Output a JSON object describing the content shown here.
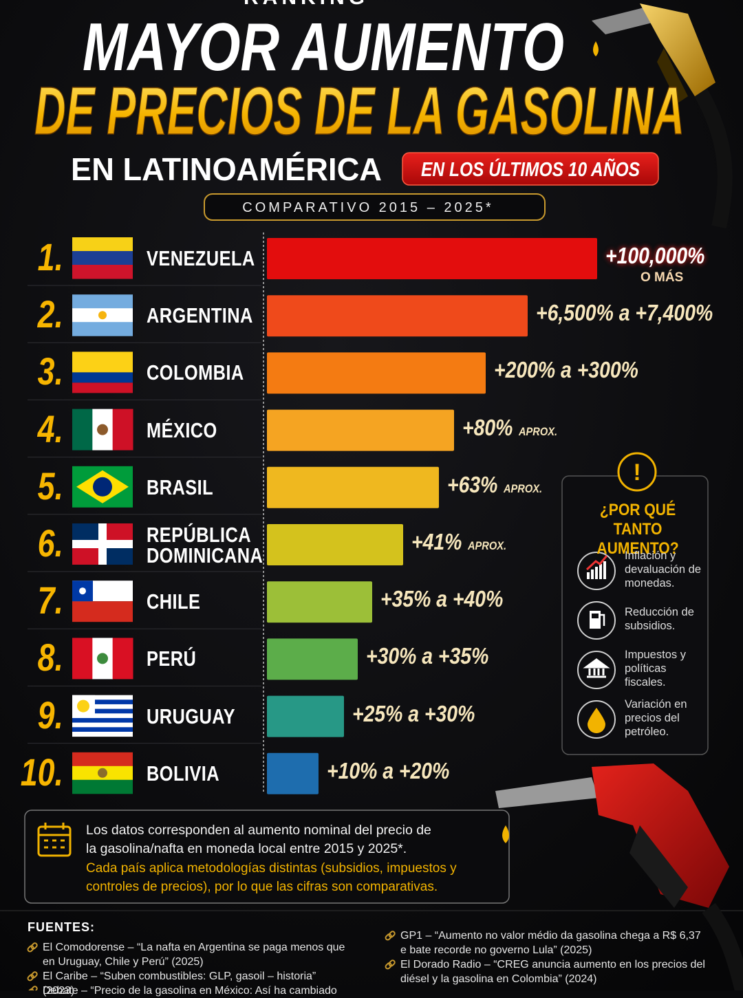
{
  "header": {
    "kicker": "RANKING",
    "title_line1": "MAYOR AUMENTO",
    "title_line2": "DE PRECIOS DE LA GASOLINA",
    "region": "EN LATINOAMÉRICA",
    "badge": "EN LOS ÚLTIMOS 10 AÑOS",
    "period": "COMPARATIVO 2015 – 2025*"
  },
  "ranking": [
    {
      "rank": "1.",
      "country": "VENEZUELA",
      "increase": "+100,000%",
      "note": "O MÁS",
      "color": "#e30d0d"
    },
    {
      "rank": "2.",
      "country": "ARGENTINA",
      "increase": "+6,500% a +7,400%",
      "color": "#ef4a1b"
    },
    {
      "rank": "3.",
      "country": "COLOMBIA",
      "increase": "+200% a +300%",
      "color": "#f47b12"
    },
    {
      "rank": "4.",
      "country": "MÉXICO",
      "increase": "+80%",
      "note": "APROX.",
      "color": "#f5a422"
    },
    {
      "rank": "5.",
      "country": "BRASIL",
      "increase": "+63%",
      "note": "APROX.",
      "color": "#efb81f"
    },
    {
      "rank": "6.",
      "country": "REPÚBLICA DOMINICANA",
      "increase": "+41%",
      "note": "APROX.",
      "color": "#d4c21d"
    },
    {
      "rank": "7.",
      "country": "CHILE",
      "increase": "+35% a +40%",
      "color": "#9cbf38"
    },
    {
      "rank": "8.",
      "country": "PERÚ",
      "increase": "+30% a +35%",
      "color": "#5cad4a"
    },
    {
      "rank": "9.",
      "country": "URUGUAY",
      "increase": "+25% a +30%",
      "color": "#279886"
    },
    {
      "rank": "10.",
      "country": "BOLIVIA",
      "increase": "+10% a +20%",
      "color": "#1e6dae"
    }
  ],
  "sidebar": {
    "title": "¿POR QUÉ TANTO AUMENTO?",
    "reasons": [
      "Inflación y devaluación de monedas.",
      "Reducción de subsidios.",
      "Impuestos y políticas fiscales.",
      "Variación en precios del petróleo."
    ]
  },
  "footnote": {
    "text": "Los datos corresponden al aumento nominal del precio de la gasolina/nafta en moneda local entre 2015 y 2025*.",
    "caveat": "Cada país aplica metodologías distintas (subsidios, impuestos y controles de precios), por lo que las cifras son comparativas."
  },
  "sources": {
    "title": "FUENTES:",
    "left": [
      "El Comodorense – “La nafta en Argentina se paga menos que en Uruguay, Chile y Perú” (2025)",
      "El Caribe – “Suben combustibles: GLP, gasoil – historia” (2023)",
      "Debate – “Precio de la gasolina en México: Así ha cambiado"
    ],
    "right": [
      "GP1 – “Aumento no valor médio da gasolina chega a R$ 6,37 e bate recorde no governo Lula” (2025)",
      "El Dorado Radio – “CREG anuncia aumento en los precios del diésel y la gasolina en Colombia” (2024)"
    ]
  }
}
